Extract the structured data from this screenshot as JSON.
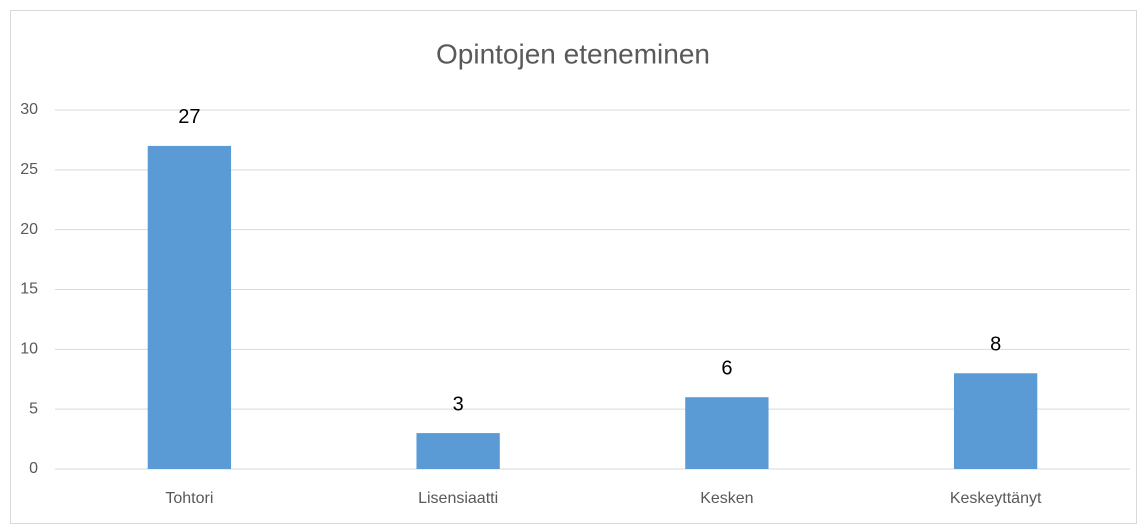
{
  "chart_data": {
    "type": "bar",
    "title": "Opintojen eteneminen",
    "categories": [
      "Tohtori",
      "Lisensiaatti",
      "Kesken",
      "Keskeyttänyt"
    ],
    "values": [
      27,
      3,
      6,
      8
    ],
    "color": "#5b9bd5",
    "ylim": [
      0,
      30
    ],
    "yticks": [
      0,
      5,
      10,
      15,
      20,
      25,
      30
    ],
    "grid": true,
    "data_labels": true
  }
}
